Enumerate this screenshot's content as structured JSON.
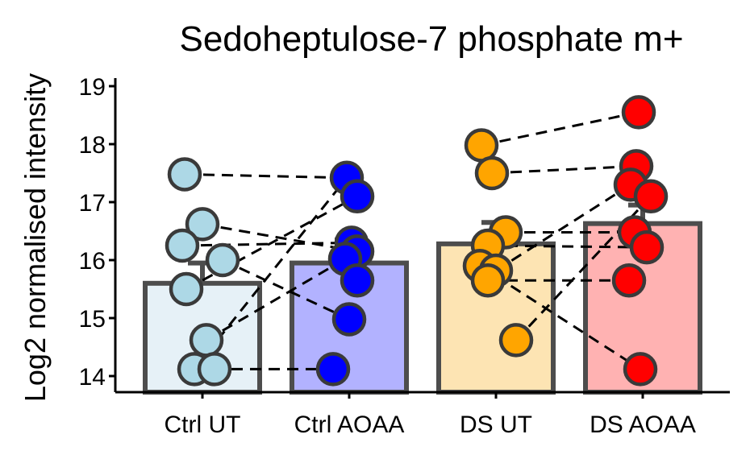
{
  "chart_data": {
    "type": "bar",
    "title": "Sedoheptulose-7 phosphate m+",
    "xlabel": "",
    "ylabel": "Log2 normalised intensity",
    "ylim": [
      13.75,
      19.1
    ],
    "yticks": [
      14,
      15,
      16,
      17,
      18,
      19
    ],
    "categories": [
      "Ctrl UT",
      "Ctrl AOAA",
      "DS UT",
      "DS AOAA"
    ],
    "bar_values": [
      15.6,
      15.95,
      16.28,
      16.63
    ],
    "bar_colors": [
      "#e6f1f7",
      "#b2b2ff",
      "#fde4b3",
      "#ffb2b2"
    ],
    "point_colors": [
      "#add8e6",
      "#0000ff",
      "#ffa500",
      "#ff0000"
    ],
    "points": [
      [
        17.48,
        16.62,
        16.25,
        16.0,
        15.5,
        14.62,
        14.12,
        14.12
      ],
      [
        17.42,
        17.1,
        16.3,
        16.15,
        16.02,
        15.65,
        14.98,
        14.12
      ],
      [
        17.98,
        17.5,
        16.48,
        16.25,
        15.9,
        15.82,
        15.65,
        14.62
      ],
      [
        18.55,
        17.62,
        17.3,
        17.1,
        16.48,
        16.22,
        15.65,
        14.12
      ]
    ],
    "pairs": [
      {
        "group_a": 0,
        "value_a": 14.12,
        "group_b": 1,
        "value_b": 14.12
      },
      {
        "group_a": 0,
        "value_a": 14.62,
        "group_b": 1,
        "value_b": 16.02
      },
      {
        "group_a": 0,
        "value_a": 15.5,
        "group_b": 1,
        "value_b": 17.1
      },
      {
        "group_a": 0,
        "value_a": 16.0,
        "group_b": 1,
        "value_b": 14.98
      },
      {
        "group_a": 0,
        "value_a": 16.25,
        "group_b": 1,
        "value_b": 16.3
      },
      {
        "group_a": 0,
        "value_a": 16.62,
        "group_b": 1,
        "value_b": 16.15
      },
      {
        "group_a": 0,
        "value_a": 17.48,
        "group_b": 1,
        "value_b": 17.42
      },
      {
        "group_a": 0,
        "value_a": 14.12,
        "group_b": 1,
        "value_b": 17.42
      },
      {
        "group_a": 2,
        "value_a": 17.98,
        "group_b": 3,
        "value_b": 18.55
      },
      {
        "group_a": 2,
        "value_a": 17.5,
        "group_b": 3,
        "value_b": 17.62
      },
      {
        "group_a": 2,
        "value_a": 16.48,
        "group_b": 3,
        "value_b": 16.48
      },
      {
        "group_a": 2,
        "value_a": 16.25,
        "group_b": 3,
        "value_b": 16.22
      },
      {
        "group_a": 2,
        "value_a": 15.9,
        "group_b": 3,
        "value_b": 14.12
      },
      {
        "group_a": 2,
        "value_a": 15.82,
        "group_b": 3,
        "value_b": 17.3
      },
      {
        "group_a": 2,
        "value_a": 15.65,
        "group_b": 3,
        "value_b": 15.65
      },
      {
        "group_a": 2,
        "value_a": 14.62,
        "group_b": 3,
        "value_b": 17.1
      }
    ],
    "error_bars": [
      {
        "group": 0,
        "low": 15.6,
        "high": 15.95
      },
      {
        "group": 1,
        "low": 15.95,
        "high": 16.35
      },
      {
        "group": 2,
        "low": 16.28,
        "high": 16.65
      },
      {
        "group": 3,
        "low": 16.63,
        "high": 16.95
      }
    ],
    "grid": false,
    "legend": "none"
  }
}
